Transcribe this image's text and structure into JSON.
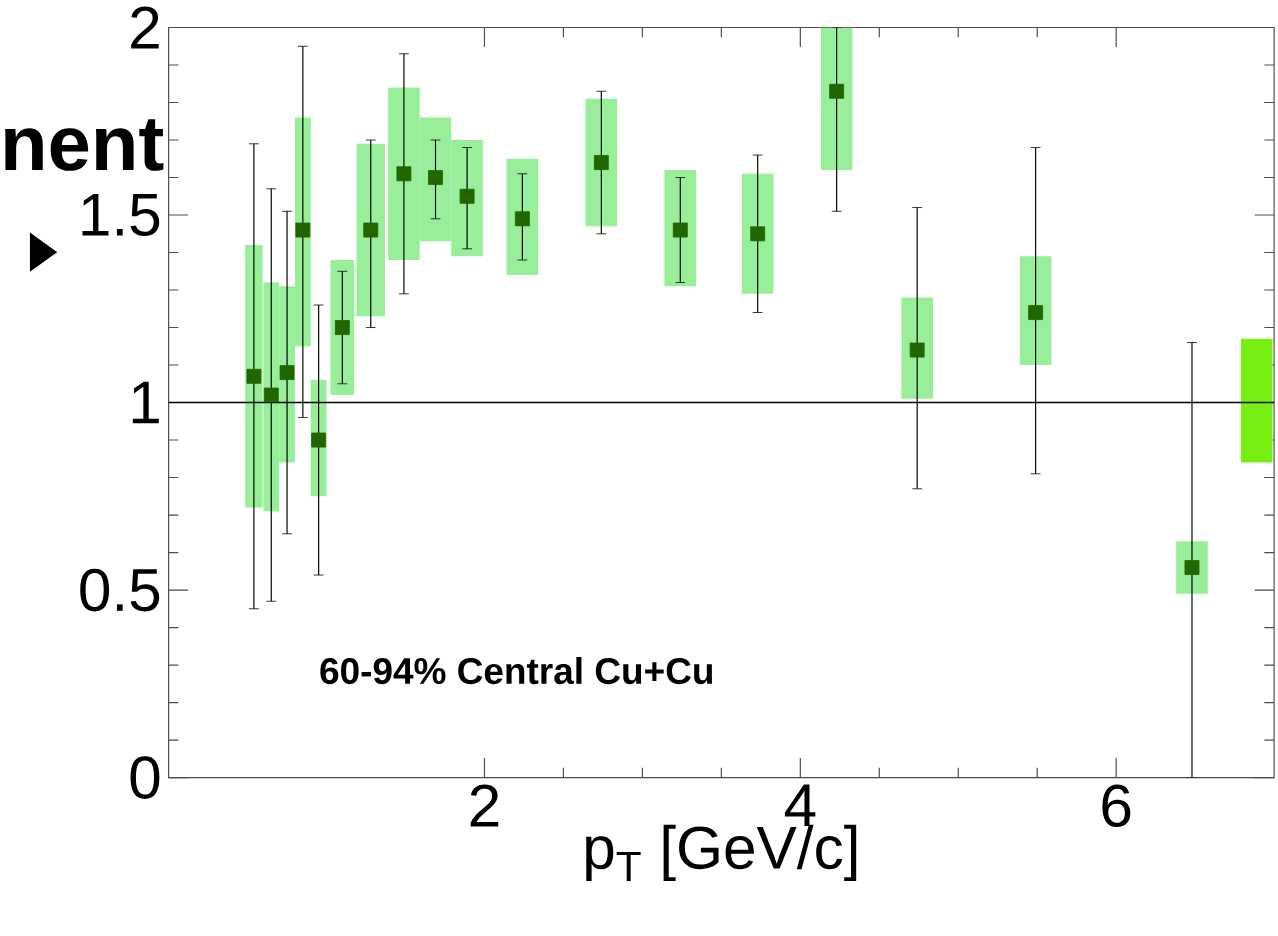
{
  "chart_data": {
    "type": "scatter",
    "xlabel": "p$_{T}$ [GeV/c]",
    "x": [
      0.54,
      0.65,
      0.75,
      0.85,
      0.95,
      1.1,
      1.28,
      1.49,
      1.69,
      1.89,
      2.24,
      2.74,
      3.24,
      3.73,
      4.23,
      4.74,
      5.49,
      6.48
    ],
    "series": [
      {
        "type": "bar",
        "color": "#99ee99",
        "base": [
          0.72,
          0.71,
          0.84,
          1.15,
          0.75,
          1.02,
          1.23,
          1.38,
          1.43,
          1.39,
          1.34,
          1.47,
          1.31,
          1.29,
          1.62,
          1.01,
          1.1,
          0.49
        ],
        "values": [
          0.7,
          0.61,
          0.47,
          0.61,
          0.31,
          0.36,
          0.46,
          0.46,
          0.33,
          0.31,
          0.31,
          0.34,
          0.31,
          0.32,
          0.38,
          0.27,
          0.29,
          0.14
        ]
      },
      {
        "color": "#226600",
        "marker": "square",
        "values": [
          1.07,
          1.02,
          1.08,
          1.46,
          0.9,
          1.2,
          1.46,
          1.61,
          1.6,
          1.55,
          1.49,
          1.64,
          1.46,
          1.45,
          1.83,
          1.14,
          1.24,
          0.56
        ],
        "errors": [
          [
            0.45,
            1.69
          ],
          [
            0.47,
            1.57
          ],
          [
            0.65,
            1.51
          ],
          [
            0.96,
            1.95
          ],
          [
            0.54,
            1.26
          ],
          [
            1.05,
            1.35
          ],
          [
            1.2,
            1.7
          ],
          [
            1.29,
            1.93
          ],
          [
            1.49,
            1.7
          ],
          [
            1.41,
            1.68
          ],
          [
            1.38,
            1.61
          ],
          [
            1.45,
            1.83
          ],
          [
            1.32,
            1.6
          ],
          [
            1.24,
            1.66
          ],
          [
            1.51,
            2.0
          ],
          [
            0.77,
            1.52
          ],
          [
            0.81,
            1.68
          ],
          [
            0,
            1.16
          ]
        ]
      },
      {
        "type": "bar",
        "color": "#77ee11",
        "x": [
          6.89
        ],
        "base": [
          0.84
        ],
        "values": [
          0.33
        ]
      }
    ],
    "xlim": [
      0,
      7
    ],
    "ylim": [
      0,
      2
    ],
    "xticks": [
      2,
      4,
      6
    ],
    "yticks": [
      0,
      0.5,
      1,
      1.5,
      2
    ],
    "ref_lines": [
      {
        "axis": "y",
        "value": 1,
        "color": "#000000"
      }
    ],
    "annotations": [
      "nent",
      "60-94% Central Cu+Cu"
    ]
  }
}
